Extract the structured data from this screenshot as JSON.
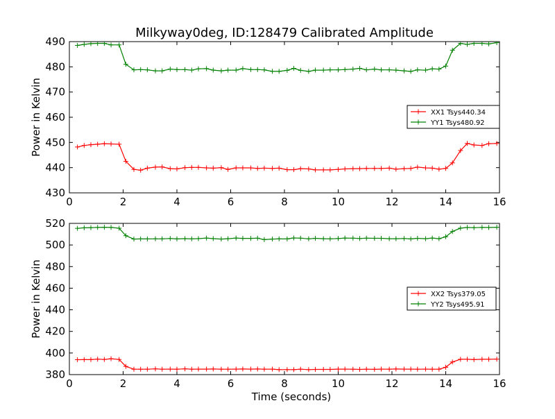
{
  "title": "Milkyway0deg, ID:128479 Calibrated Amplitude",
  "colors": {
    "xx": "#ff0000",
    "yy": "#008000"
  },
  "chart_data": [
    {
      "type": "line",
      "ylabel": "Power in Kelvin",
      "xlabel": "",
      "xlim": [
        0,
        16
      ],
      "ylim": [
        430,
        490
      ],
      "xticks": [
        0,
        2,
        4,
        6,
        8,
        10,
        12,
        14,
        16
      ],
      "yticks": [
        430,
        440,
        450,
        460,
        470,
        480,
        490
      ],
      "legend_position": "right",
      "x": [
        0.3,
        0.55,
        0.8,
        1.05,
        1.3,
        1.55,
        1.85,
        2.1,
        2.4,
        2.65,
        2.9,
        3.2,
        3.45,
        3.75,
        4.0,
        4.3,
        4.55,
        4.8,
        5.1,
        5.35,
        5.65,
        5.9,
        6.2,
        6.45,
        6.75,
        7.0,
        7.25,
        7.55,
        7.8,
        8.1,
        8.35,
        8.6,
        8.9,
        9.15,
        9.45,
        9.7,
        10.0,
        10.25,
        10.55,
        10.8,
        11.05,
        11.35,
        11.6,
        11.9,
        12.15,
        12.45,
        12.7,
        12.95,
        13.25,
        13.5,
        13.75,
        14.0,
        14.25,
        14.55,
        14.8,
        15.05,
        15.35,
        15.6,
        15.9
      ],
      "series": [
        {
          "name": "XX1 Tsys440.34",
          "color": "#ff0000",
          "values": [
            448.2,
            448.8,
            449.1,
            449.3,
            449.5,
            449.4,
            449.3,
            442.5,
            439.3,
            439.0,
            439.8,
            440.2,
            440.3,
            439.6,
            439.5,
            440.0,
            440.1,
            440.1,
            439.9,
            439.8,
            440.0,
            439.3,
            439.9,
            439.9,
            439.9,
            439.7,
            439.8,
            439.7,
            439.8,
            439.2,
            439.2,
            439.6,
            439.5,
            439.1,
            439.1,
            439.1,
            439.3,
            439.5,
            439.6,
            439.6,
            439.7,
            439.7,
            439.7,
            439.8,
            439.4,
            439.6,
            439.7,
            440.2,
            439.9,
            439.8,
            439.4,
            439.7,
            441.9,
            446.8,
            449.6,
            449.0,
            448.8,
            449.5,
            449.6
          ]
        },
        {
          "name": "YY1 Tsys480.92",
          "color": "#008000",
          "values": [
            488.5,
            488.9,
            489.2,
            489.3,
            489.3,
            488.7,
            488.7,
            481.0,
            478.8,
            478.9,
            478.8,
            478.4,
            478.4,
            479.1,
            478.9,
            478.9,
            478.7,
            479.2,
            479.3,
            478.7,
            478.4,
            478.7,
            478.7,
            479.3,
            478.9,
            478.9,
            478.8,
            478.2,
            478.2,
            478.6,
            479.4,
            478.6,
            478.2,
            478.7,
            478.7,
            478.8,
            478.8,
            478.9,
            479.1,
            479.4,
            478.8,
            479.1,
            478.8,
            478.8,
            478.7,
            478.4,
            478.2,
            478.8,
            478.7,
            479.2,
            479.1,
            480.3,
            486.6,
            489.3,
            488.9,
            489.3,
            489.3,
            489.1,
            489.6
          ]
        }
      ]
    },
    {
      "type": "line",
      "ylabel": "Power in Kelvin",
      "xlabel": "Time (seconds)",
      "xlim": [
        0,
        16
      ],
      "ylim": [
        380,
        520
      ],
      "xticks": [
        0,
        2,
        4,
        6,
        8,
        10,
        12,
        14,
        16
      ],
      "yticks": [
        380,
        400,
        420,
        440,
        460,
        480,
        500,
        520
      ],
      "legend_position": "right",
      "x": [
        0.3,
        0.55,
        0.8,
        1.05,
        1.3,
        1.55,
        1.85,
        2.1,
        2.4,
        2.65,
        2.9,
        3.2,
        3.45,
        3.75,
        4.0,
        4.3,
        4.55,
        4.8,
        5.1,
        5.35,
        5.65,
        5.9,
        6.2,
        6.45,
        6.75,
        7.0,
        7.25,
        7.55,
        7.8,
        8.1,
        8.35,
        8.6,
        8.9,
        9.15,
        9.45,
        9.7,
        10.0,
        10.25,
        10.55,
        10.8,
        11.05,
        11.35,
        11.6,
        11.9,
        12.15,
        12.45,
        12.7,
        12.95,
        13.25,
        13.5,
        13.75,
        14.0,
        14.25,
        14.55,
        14.8,
        15.05,
        15.35,
        15.6,
        15.9
      ],
      "series": [
        {
          "name": "XX2 Tsys379.05",
          "color": "#ff0000",
          "values": [
            393.8,
            393.9,
            393.9,
            394.3,
            394.0,
            394.7,
            394.0,
            387.6,
            385.0,
            385.0,
            385.0,
            385.3,
            385.0,
            385.1,
            385.0,
            385.3,
            385.0,
            385.1,
            385.1,
            385.2,
            385.0,
            385.0,
            385.1,
            385.2,
            385.1,
            385.2,
            385.0,
            385.1,
            384.6,
            384.6,
            384.6,
            385.0,
            384.6,
            384.8,
            384.8,
            384.8,
            385.1,
            385.1,
            385.0,
            384.8,
            385.0,
            384.9,
            385.1,
            385.0,
            385.2,
            385.1,
            385.1,
            385.0,
            385.1,
            385.0,
            385.0,
            386.8,
            391.7,
            394.2,
            394.2,
            393.9,
            394.2,
            394.2,
            394.3
          ]
        },
        {
          "name": "YY2 Tsys495.91",
          "color": "#008000",
          "values": [
            515.4,
            515.9,
            516.0,
            516.3,
            516.4,
            516.3,
            515.5,
            508.6,
            505.5,
            505.6,
            505.6,
            505.7,
            505.7,
            506.0,
            505.6,
            505.9,
            505.7,
            505.9,
            506.4,
            505.9,
            505.5,
            505.8,
            506.4,
            506.1,
            506.1,
            506.3,
            505.0,
            505.5,
            505.7,
            505.6,
            506.5,
            506.3,
            505.7,
            506.2,
            505.8,
            505.7,
            506.0,
            506.4,
            506.3,
            506.0,
            506.3,
            506.2,
            506.2,
            505.8,
            505.8,
            506.0,
            505.6,
            506.2,
            505.8,
            506.4,
            505.8,
            507.6,
            512.5,
            515.6,
            516.2,
            516.0,
            516.3,
            516.2,
            516.4
          ]
        }
      ]
    }
  ]
}
